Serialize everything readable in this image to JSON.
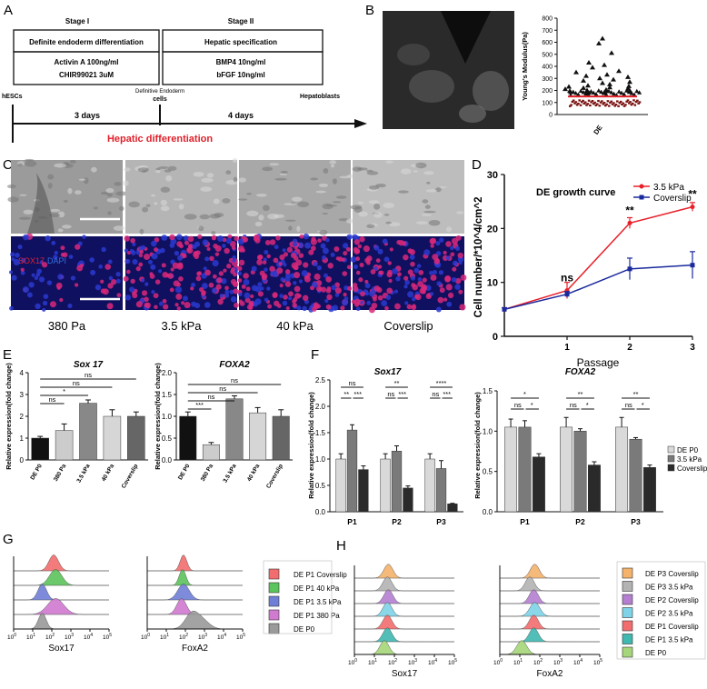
{
  "panelA": {
    "letter": "A",
    "stage1": "Stage I",
    "stage2": "Stage II",
    "box1_title": "Definite endoderm differentiation",
    "box1_line1": "Activin A 100ng/ml",
    "box1_line2": "CHIR99021 3uM",
    "box2_title": "Hepatic specification",
    "box2_line1": "BMP4 10ng/ml",
    "box2_line2": "bFGF 10ng/ml",
    "start": "hESCs",
    "mid1": "Definitive Endoderm",
    "mid2": "cells",
    "end": "Hepatoblasts",
    "dur1": "3 days",
    "dur2": "4 days",
    "caption": "Hepatic differentiation"
  },
  "panelB": {
    "letter": "B",
    "chart_data": {
      "type": "scatter",
      "ylabel": "Young's Modulus(Pa)",
      "category": "DE",
      "ylim": [
        0,
        800
      ],
      "yticks": [
        "0",
        "100",
        "200",
        "300",
        "400",
        "500",
        "600",
        "700",
        "800"
      ],
      "values": [
        630,
        590,
        510,
        430,
        410,
        390,
        360,
        350,
        330,
        320,
        310,
        300,
        290,
        280,
        270,
        260,
        250,
        240,
        235,
        230,
        225,
        220,
        215,
        210,
        205,
        200,
        198,
        195,
        192,
        190,
        188,
        185,
        182,
        180
      ]
    }
  },
  "panelC": {
    "letter": "C",
    "stain_sox": "SOX17",
    "stain_dapi": "DAPI",
    "labels": [
      "380 Pa",
      "3.5 kPa",
      "40 kPa",
      "Coverslip"
    ]
  },
  "panelD": {
    "letter": "D",
    "chart_data": {
      "type": "line",
      "title": "DE growth curve",
      "xlabel": "Passage",
      "ylabel": "Cell number/*10^4/cm^2",
      "x": [
        0,
        1,
        2,
        3
      ],
      "xticks": [
        "1",
        "2",
        "3"
      ],
      "ylim": [
        0,
        30
      ],
      "yticks": [
        "0",
        "10",
        "20",
        "30"
      ],
      "series": [
        {
          "name": "3.5 kPa",
          "color": "#e8202a",
          "values": [
            5,
            8.5,
            21,
            24
          ],
          "err": [
            0.3,
            1.5,
            1.0,
            0.8
          ]
        },
        {
          "name": "Coverslip",
          "color": "#1a2a9c",
          "values": [
            5,
            7.8,
            12.5,
            13.2
          ],
          "err": [
            0.3,
            0.5,
            2.0,
            2.5
          ]
        }
      ],
      "annotations": [
        "ns",
        "**",
        "**"
      ]
    }
  },
  "panelE": {
    "letter": "E",
    "ylabel": "Relative expression(fold change)",
    "chart_data": [
      {
        "type": "bar",
        "title": "Sox 17",
        "categories": [
          "DE P0",
          "380 Pa",
          "3.5 kPa",
          "40 kPa",
          "Coverslip"
        ],
        "values": [
          1.0,
          1.35,
          2.6,
          2.0,
          2.0
        ],
        "err": [
          0.08,
          0.3,
          0.15,
          0.3,
          0.2
        ],
        "ylim": [
          0,
          4
        ],
        "yticks": [
          "0",
          "1",
          "2",
          "3",
          "4"
        ],
        "colors": [
          "#111111",
          "#cccccc",
          "#888888",
          "#d6d6d6",
          "#666666"
        ],
        "sig": [
          "ns",
          "*",
          "ns",
          "ns"
        ]
      },
      {
        "type": "bar",
        "title": "FOXA2",
        "categories": [
          "DE P0",
          "380 Pa",
          "3.5 kPa",
          "40 kPa",
          "Coverslip"
        ],
        "values": [
          1.0,
          0.35,
          1.4,
          1.08,
          1.0
        ],
        "err": [
          0.1,
          0.05,
          0.07,
          0.12,
          0.15
        ],
        "ylim": [
          0,
          2.0
        ],
        "yticks": [
          "0.0",
          "0.5",
          "1.0",
          "1.5",
          "2.0"
        ],
        "colors": [
          "#111111",
          "#cccccc",
          "#888888",
          "#d6d6d6",
          "#666666"
        ],
        "sig": [
          "***",
          "ns",
          "ns",
          "ns"
        ]
      }
    ]
  },
  "panelF": {
    "letter": "F",
    "ylabel": "Relative expression(fold change)",
    "legend": [
      "DE P0",
      "3.5 kPa",
      "Coverslip"
    ],
    "chart_data": [
      {
        "type": "bar",
        "title": "Sox17",
        "categories": [
          "P1",
          "P2",
          "P3"
        ],
        "ylim": [
          0,
          2.5
        ],
        "yticks": [
          "0.0",
          "0.5",
          "1.0",
          "1.5",
          "2.0",
          "2.5"
        ],
        "series": [
          {
            "name": "DE P0",
            "values": [
              1.0,
              1.0,
              1.0
            ],
            "err": [
              0.1,
              0.1,
              0.1
            ]
          },
          {
            "name": "3.5 kPa",
            "values": [
              1.55,
              1.15,
              0.82
            ],
            "err": [
              0.1,
              0.1,
              0.15
            ]
          },
          {
            "name": "Coverslip",
            "values": [
              0.8,
              0.45,
              0.15
            ],
            "err": [
              0.07,
              0.04,
              0.01
            ]
          }
        ],
        "sig_top": [
          "ns",
          "**",
          "****"
        ],
        "sig_low": [
          "**",
          "***",
          "ns",
          "***",
          "ns",
          "***"
        ]
      },
      {
        "type": "bar",
        "title": "FOXA2",
        "categories": [
          "P1",
          "P2",
          "P3"
        ],
        "ylim": [
          0,
          1.5
        ],
        "yticks": [
          "0.0",
          "0.5",
          "1.0",
          "1.5"
        ],
        "series": [
          {
            "name": "DE P0",
            "values": [
              1.05,
              1.05,
              1.05
            ],
            "err": [
              0.1,
              0.12,
              0.12
            ]
          },
          {
            "name": "3.5 kPa",
            "values": [
              1.05,
              1.0,
              0.9
            ],
            "err": [
              0.08,
              0.03,
              0.02
            ]
          },
          {
            "name": "Coverslip",
            "values": [
              0.68,
              0.58,
              0.55
            ],
            "err": [
              0.04,
              0.04,
              0.03
            ]
          }
        ],
        "sig_top": [
          "*",
          "**",
          "**"
        ],
        "sig_low": [
          "ns",
          "*",
          "ns",
          "*",
          "ns",
          "*"
        ]
      }
    ]
  },
  "panelG": {
    "letter": "G",
    "xlabel1": "Sox17",
    "xlabel2": "FoxA2",
    "legend": [
      {
        "name": "DE P1 Coverslip",
        "color": "#f26d6d"
      },
      {
        "name": "DE P1 40 kPa",
        "color": "#5cc45c"
      },
      {
        "name": "DE P1 3.5 kPa",
        "color": "#6f7fd6"
      },
      {
        "name": "DE P1 380 Pa",
        "color": "#d07ad0"
      },
      {
        "name": "DE P0",
        "color": "#9a9a9a"
      }
    ]
  },
  "panelH": {
    "letter": "H",
    "xlabel1": "Sox17",
    "xlabel2": "FoxA2",
    "legend": [
      {
        "name": "DE P3 Coverslip",
        "color": "#f5b26b"
      },
      {
        "name": "DE P3 3.5 kPa",
        "color": "#b3b3b3"
      },
      {
        "name": "DE P2 Coverslip",
        "color": "#b47fd1"
      },
      {
        "name": "DE P2 3.5 kPa",
        "color": "#7fd3e8"
      },
      {
        "name": "DE P1 Coverslip",
        "color": "#f26d6d"
      },
      {
        "name": "DE P1 3.5 kPa",
        "color": "#3fb8b0"
      },
      {
        "name": "DE P0",
        "color": "#a6d67a"
      }
    ]
  },
  "flow_ticks": [
    "10",
    "10",
    "10",
    "10",
    "10",
    "10"
  ]
}
